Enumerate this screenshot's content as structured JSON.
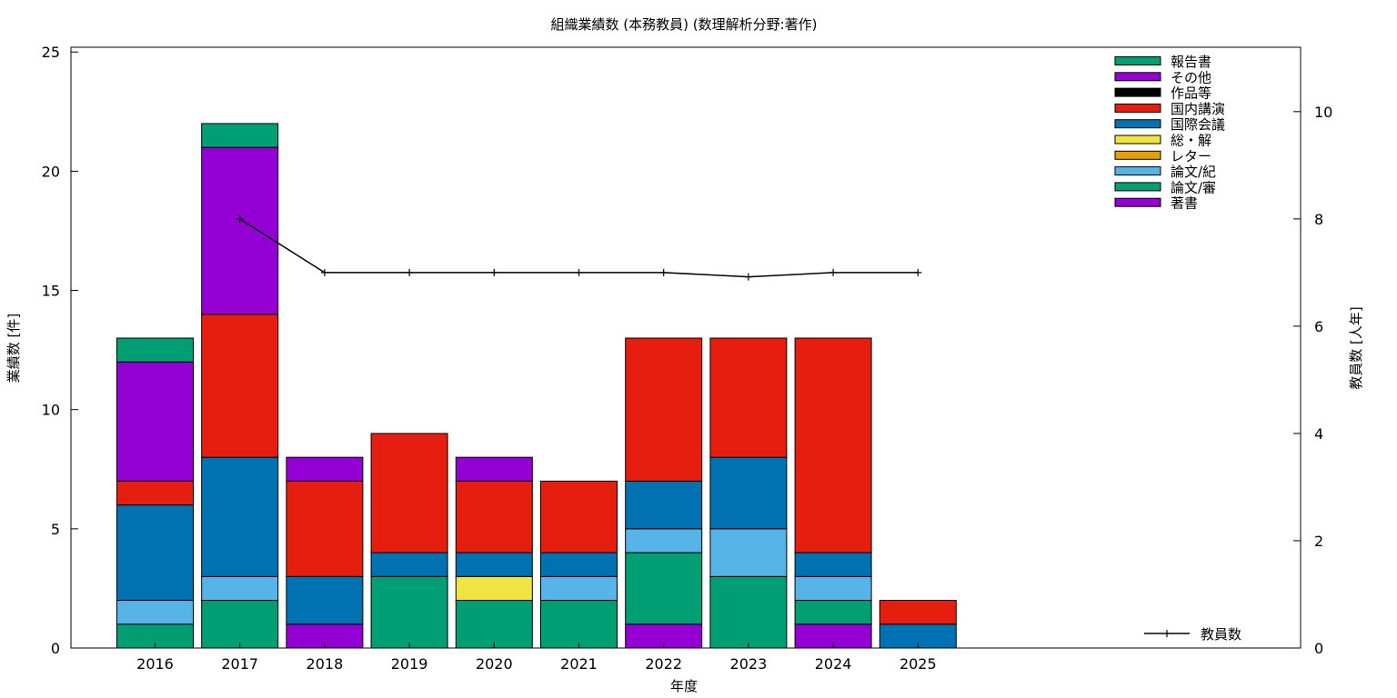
{
  "chart_data": {
    "type": "bar",
    "stacked": true,
    "title": "組織業績数 (本務教員) (数理解析分野:著作)",
    "xlabel": "年度",
    "ylabel": "業績数 [件]",
    "y2label": "教員数 [人年]",
    "categories": [
      "2016",
      "2017",
      "2018",
      "2019",
      "2020",
      "2021",
      "2022",
      "2023",
      "2024",
      "2025"
    ],
    "ylim": [
      0,
      25.2
    ],
    "yticks": [
      0,
      5,
      10,
      15,
      20,
      25
    ],
    "y2lim": [
      0,
      11.2
    ],
    "y2ticks": [
      0,
      2,
      4,
      6,
      8,
      10
    ],
    "grid": false,
    "legend_position": "top-right",
    "series": [
      {
        "name": "著書",
        "color": "#9400d3",
        "values": [
          0,
          0,
          1,
          0,
          0,
          0,
          1,
          0,
          1,
          0
        ]
      },
      {
        "name": "論文/審",
        "color": "#009e73",
        "values": [
          1,
          2,
          0,
          3,
          2,
          2,
          3,
          3,
          1,
          0
        ]
      },
      {
        "name": "論文/紀",
        "color": "#56b4e9",
        "values": [
          1,
          1,
          0,
          0,
          0,
          1,
          1,
          2,
          1,
          0
        ]
      },
      {
        "name": "レター",
        "color": "#e69f00",
        "values": [
          0,
          0,
          0,
          0,
          0,
          0,
          0,
          0,
          0,
          0
        ]
      },
      {
        "name": "総・解",
        "color": "#f0e442",
        "values": [
          0,
          0,
          0,
          0,
          1,
          0,
          0,
          0,
          0,
          0
        ]
      },
      {
        "name": "国際会議",
        "color": "#0072b2",
        "values": [
          4,
          5,
          2,
          1,
          1,
          1,
          2,
          3,
          1,
          1
        ]
      },
      {
        "name": "国内講演",
        "color": "#e51e10",
        "values": [
          1,
          6,
          4,
          5,
          3,
          3,
          6,
          5,
          9,
          1
        ]
      },
      {
        "name": "作品等",
        "color": "#000000",
        "values": [
          0,
          0,
          0,
          0,
          0,
          0,
          0,
          0,
          0,
          0
        ]
      },
      {
        "name": "その他",
        "color": "#9400d3",
        "values": [
          5,
          7,
          1,
          0,
          1,
          0,
          0,
          0,
          0,
          0
        ]
      },
      {
        "name": "報告書",
        "color": "#009e73",
        "values": [
          1,
          1,
          0,
          0,
          0,
          0,
          0,
          0,
          0,
          0
        ]
      }
    ],
    "legend_order": [
      "報告書",
      "その他",
      "作品等",
      "国内講演",
      "国際会議",
      "総・解",
      "レター",
      "論文/紀",
      "論文/審",
      "著書"
    ],
    "line_series": {
      "name": "教員数",
      "axis": "y2",
      "color": "#000000",
      "x": [
        "2017",
        "2018",
        "2019",
        "2020",
        "2021",
        "2022",
        "2023",
        "2024",
        "2025"
      ],
      "values": [
        8,
        7,
        7,
        7,
        7,
        7,
        6.92,
        7,
        7
      ]
    }
  }
}
